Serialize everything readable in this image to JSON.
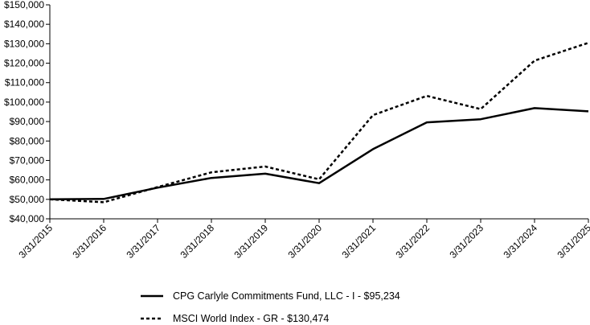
{
  "chart_data": {
    "type": "line",
    "title": "",
    "xlabel": "",
    "ylabel": "",
    "categories": [
      "3/31/2015",
      "3/31/2016",
      "3/31/2017",
      "3/31/2018",
      "3/31/2019",
      "3/31/2020",
      "3/31/2021",
      "3/31/2022",
      "3/31/2023",
      "3/31/2024",
      "3/31/2025"
    ],
    "ylim": [
      40000,
      150000
    ],
    "yticks": [
      40000,
      50000,
      60000,
      70000,
      80000,
      90000,
      100000,
      110000,
      120000,
      130000,
      140000,
      150000
    ],
    "ytick_labels": [
      "$40,000",
      "$50,000",
      "$60,000",
      "$70,000",
      "$80,000",
      "$90,000",
      "$100,000",
      "$110,000",
      "$120,000",
      "$130,000",
      "$140,000",
      "$150,000"
    ],
    "grid": false,
    "legend_position": "bottom",
    "series": [
      {
        "name": "CPG Carlyle Commitments Fund, LLC - I - $95,234",
        "style": "solid",
        "color": "#000000",
        "values": [
          50000,
          50200,
          56000,
          61000,
          63200,
          58300,
          75800,
          89600,
          91200,
          96900,
          95234
        ]
      },
      {
        "name": "MSCI World Index - GR - $130,474",
        "style": "dashed",
        "color": "#000000",
        "values": [
          50000,
          48500,
          56300,
          63900,
          66900,
          60300,
          93300,
          103200,
          96400,
          121300,
          130474
        ]
      }
    ]
  }
}
